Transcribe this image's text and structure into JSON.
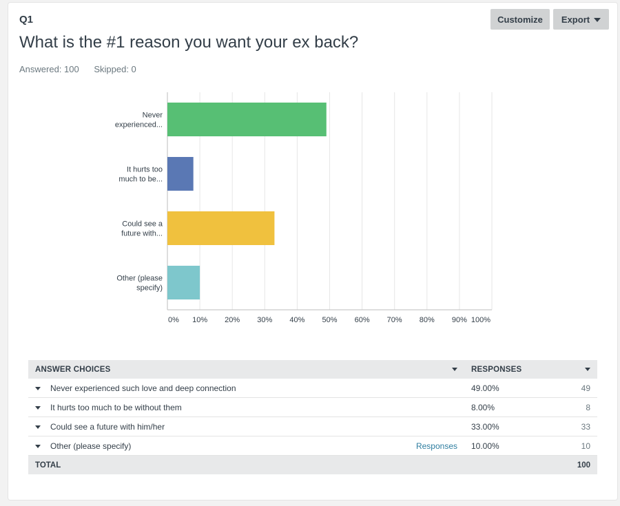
{
  "question": {
    "number": "Q1",
    "title": "What is the #1 reason you want your ex back?",
    "answered": "Answered: 100",
    "skipped": "Skipped: 0"
  },
  "toolbar": {
    "customize_label": "Customize",
    "export_label": "Export"
  },
  "chart_data": {
    "type": "bar",
    "orientation": "horizontal",
    "categories": [
      [
        "Never",
        "experienced..."
      ],
      [
        "It hurts too",
        "much to be..."
      ],
      [
        "Could see a",
        "future with..."
      ],
      [
        "Other (please",
        "specify)"
      ]
    ],
    "values": [
      49,
      8,
      33,
      10
    ],
    "colors": [
      "#57bf74",
      "#5a78b4",
      "#f0c13e",
      "#7ec7cc"
    ],
    "xlim": [
      0,
      100
    ],
    "xticks": [
      "0%",
      "10%",
      "20%",
      "30%",
      "40%",
      "50%",
      "60%",
      "70%",
      "80%",
      "90%",
      "100%"
    ],
    "grid": true
  },
  "table": {
    "headers": {
      "choices": "ANSWER CHOICES",
      "responses": "RESPONSES"
    },
    "rows": [
      {
        "choice": "Never experienced such love and deep connection",
        "pct": "49.00%",
        "count": "49",
        "link": ""
      },
      {
        "choice": "It hurts too much to be without them",
        "pct": "8.00%",
        "count": "8",
        "link": ""
      },
      {
        "choice": "Could see a future with him/her",
        "pct": "33.00%",
        "count": "33",
        "link": ""
      },
      {
        "choice": "Other (please specify)",
        "pct": "10.00%",
        "count": "10",
        "link": "Responses"
      }
    ],
    "total_label": "TOTAL",
    "total_count": "100"
  }
}
